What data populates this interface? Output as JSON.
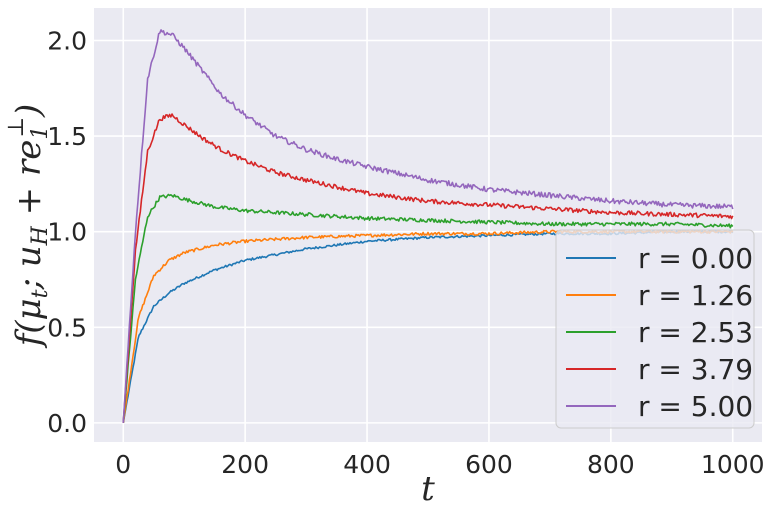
{
  "chart_data": {
    "type": "line",
    "xlabel": "t",
    "ylabel": "f(μ_t; u_H + r e_1^⊥)",
    "xlim": [
      -48,
      1048
    ],
    "ylim": [
      -0.1,
      2.17
    ],
    "xticks": [
      "0",
      "200",
      "400",
      "600",
      "800",
      "1000"
    ],
    "yticks": [
      "0.0",
      "0.5",
      "1.0",
      "1.5",
      "2.0"
    ],
    "grid": true,
    "legend_position": "bottom-right",
    "series": [
      {
        "name": "r = 0.00",
        "color": "#1f77b4",
        "x": [
          0,
          25,
          50,
          75,
          100,
          150,
          200,
          300,
          400,
          500,
          600,
          700,
          800,
          900,
          1000
        ],
        "y": [
          0,
          0.45,
          0.61,
          0.68,
          0.73,
          0.8,
          0.85,
          0.91,
          0.95,
          0.97,
          0.98,
          0.99,
          0.99,
          1.0,
          1.0
        ]
      },
      {
        "name": "r = 1.26",
        "color": "#ff7f0e",
        "x": [
          0,
          25,
          50,
          75,
          100,
          150,
          200,
          300,
          400,
          500,
          600,
          700,
          800,
          900,
          1000
        ],
        "y": [
          0,
          0.55,
          0.77,
          0.85,
          0.89,
          0.93,
          0.95,
          0.97,
          0.98,
          0.99,
          0.99,
          1.0,
          1.0,
          1.0,
          1.0
        ]
      },
      {
        "name": "r = 2.53",
        "color": "#2ca02c",
        "x": [
          0,
          20,
          40,
          60,
          80,
          100,
          150,
          200,
          300,
          400,
          500,
          600,
          700,
          800,
          900,
          1000
        ],
        "y": [
          0,
          0.75,
          1.08,
          1.18,
          1.19,
          1.17,
          1.13,
          1.11,
          1.09,
          1.07,
          1.06,
          1.05,
          1.04,
          1.04,
          1.04,
          1.03
        ]
      },
      {
        "name": "r = 3.79",
        "color": "#d62728",
        "x": [
          0,
          20,
          40,
          60,
          80,
          100,
          130,
          160,
          200,
          250,
          300,
          400,
          500,
          600,
          700,
          800,
          900,
          1000
        ],
        "y": [
          0,
          0.9,
          1.42,
          1.59,
          1.61,
          1.56,
          1.49,
          1.43,
          1.37,
          1.31,
          1.27,
          1.2,
          1.16,
          1.14,
          1.12,
          1.1,
          1.09,
          1.08
        ]
      },
      {
        "name": "r = 5.00",
        "color": "#9467bd",
        "x": [
          0,
          20,
          40,
          60,
          80,
          100,
          130,
          160,
          200,
          250,
          300,
          350,
          400,
          500,
          600,
          700,
          800,
          900,
          1000
        ],
        "y": [
          0,
          1.0,
          1.8,
          2.05,
          2.03,
          1.96,
          1.84,
          1.72,
          1.61,
          1.5,
          1.43,
          1.38,
          1.34,
          1.27,
          1.22,
          1.19,
          1.16,
          1.14,
          1.13
        ]
      }
    ]
  }
}
